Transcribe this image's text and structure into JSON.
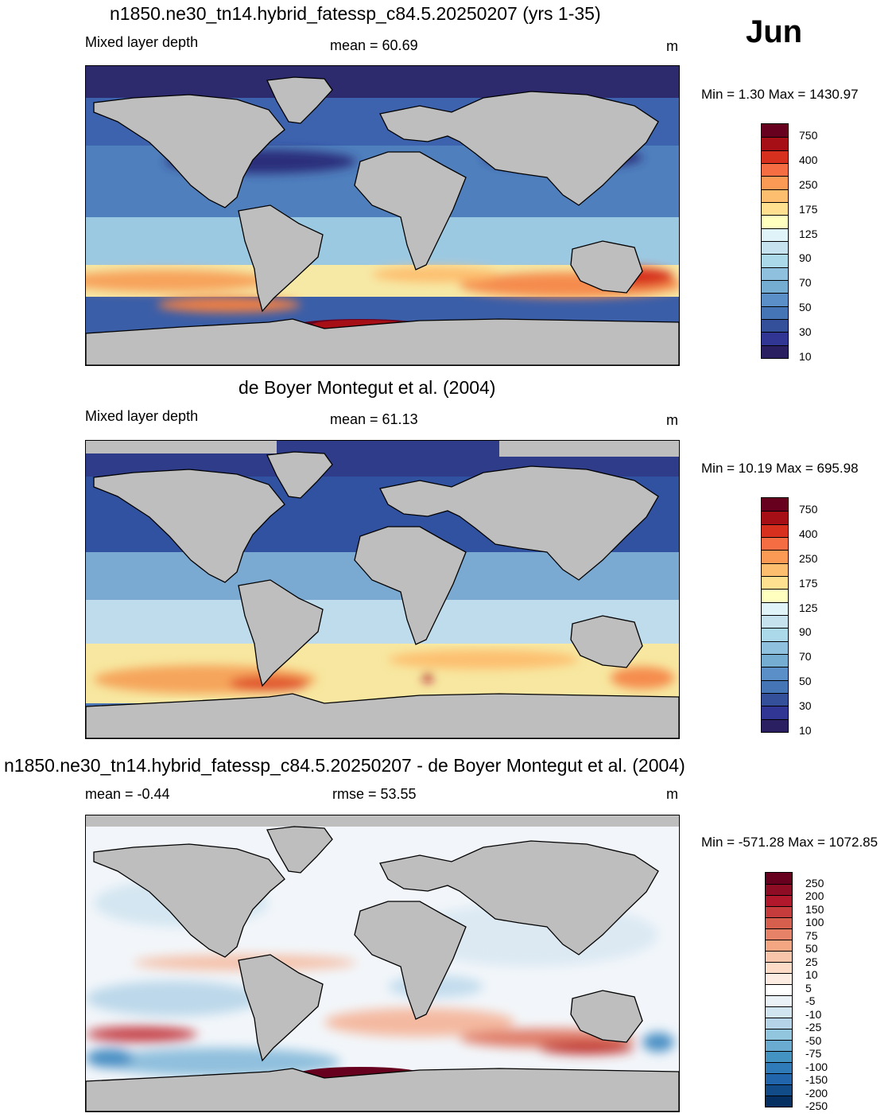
{
  "month": "Jun",
  "panels": [
    {
      "id": "model",
      "title": "n1850.ne30_tn14.hybrid_fatessp_c84.5.20250207 (yrs 1-35)",
      "left_label": "Mixed layer depth",
      "mid_label": "mean =  60.69",
      "units": "m",
      "minmax": "Min =    1.30 Max = 1430.97",
      "colorbar_labels": [
        "750",
        "400",
        "250",
        "175",
        "125",
        "90",
        "70",
        "50",
        "30",
        "10"
      ],
      "colorbar_colors": [
        "#67001f",
        "#a50f15",
        "#d7301f",
        "#f46d43",
        "#fb9a55",
        "#fdbf6f",
        "#fee090",
        "#ffffbf",
        "#e0f3f8",
        "#c6e2ef",
        "#abd9e9",
        "#8fc0de",
        "#74add1",
        "#5b8fc7",
        "#4575b4",
        "#34509a",
        "#313695",
        "#2a1f60"
      ]
    },
    {
      "id": "obs",
      "title": "de Boyer Montegut et al. (2004)",
      "left_label": "Mixed layer depth",
      "mid_label": "mean =  61.13",
      "units": "m",
      "minmax": "Min =  10.19 Max = 695.98",
      "colorbar_labels": [
        "750",
        "400",
        "250",
        "175",
        "125",
        "90",
        "70",
        "50",
        "30",
        "10"
      ],
      "colorbar_colors": [
        "#67001f",
        "#a50f15",
        "#d7301f",
        "#f46d43",
        "#fb9a55",
        "#fdbf6f",
        "#fee090",
        "#ffffbf",
        "#e0f3f8",
        "#c6e2ef",
        "#abd9e9",
        "#8fc0de",
        "#74add1",
        "#5b8fc7",
        "#4575b4",
        "#34509a",
        "#313695",
        "#2a1f60"
      ]
    },
    {
      "id": "diff",
      "title": "n1850.ne30_tn14.hybrid_fatessp_c84.5.20250207 - de Boyer Montegut et al. (2004)",
      "left_label": "mean =  -0.44",
      "mid_label": "rmse =  53.55",
      "units": "m",
      "minmax": "Min = -571.28 Max = 1072.85",
      "colorbar_labels": [
        "250",
        "200",
        "150",
        "100",
        "75",
        "50",
        "25",
        "10",
        "5",
        "-5",
        "-10",
        "-25",
        "-50",
        "-75",
        "-100",
        "-150",
        "-200",
        "-250"
      ],
      "colorbar_colors": [
        "#67001f",
        "#8e0d25",
        "#b2182b",
        "#c63c3c",
        "#d6604d",
        "#e58267",
        "#f4a582",
        "#f8c4aa",
        "#fddbc7",
        "#fdece2",
        "#ffffff",
        "#eaf2f8",
        "#d1e5f0",
        "#b5d4e8",
        "#92c5de",
        "#6aabd2",
        "#4393c3",
        "#2f7ab8",
        "#2166ac",
        "#114b88",
        "#053061"
      ]
    }
  ]
}
